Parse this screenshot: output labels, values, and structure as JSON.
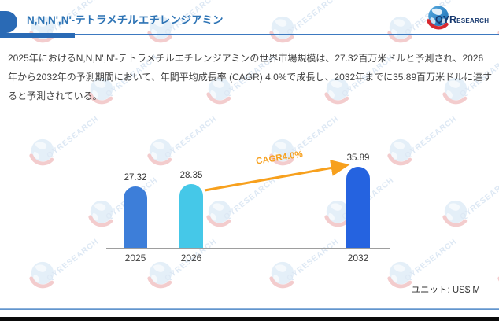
{
  "header": {
    "title": "N,N,N',N'-テトラメチルエチレンジアミン"
  },
  "logo": {
    "qyr": "QYR",
    "esearch": "ESEARCH"
  },
  "paragraph": "2025年におけるN,N,N',N'-テトラメチルエチレンジアミンの世界市場規模は、27.32百万米ドルと予測され、2026年から2032年の予測期間において、年間平均成長率 (CAGR) 4.0%で成長し、2032年までに35.89百万米ドルに達すると予測されている。",
  "chart_data": {
    "type": "bar",
    "title": "",
    "categories": [
      "2025",
      "2026",
      "2032"
    ],
    "values": [
      27.32,
      28.35,
      35.89
    ],
    "value_labels": [
      "27.32",
      "28.35",
      "35.89"
    ],
    "bar_colors": [
      "#3d7ed9",
      "#45c8e8",
      "#2563e0"
    ],
    "annotation": {
      "label": "CAGR4.0%",
      "from_category": "2026",
      "to_category": "2032",
      "color": "#f7a01d"
    },
    "unit_label": "ユニット: US$ M",
    "xlabel": "",
    "ylabel": "",
    "ylim": [
      0,
      35.89
    ],
    "grid": false,
    "legend": "none"
  },
  "watermark": {
    "text": "QYRESEARCH"
  },
  "colors": {
    "accent_blue": "#2a6ab5",
    "title_blue": "#2e74b5",
    "arrow_orange": "#f7a01d",
    "axis_gray": "#9e9e9e",
    "footer_line_blue": "#4d86c6"
  }
}
